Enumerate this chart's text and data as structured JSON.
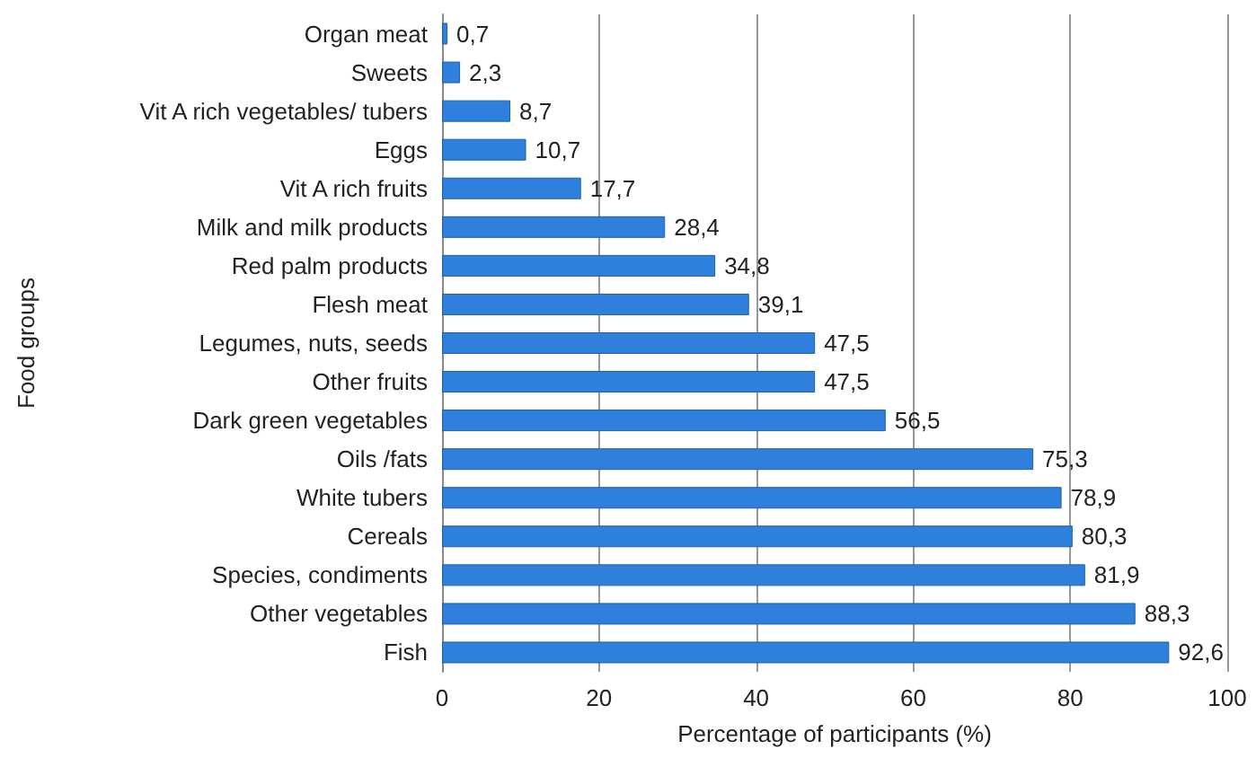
{
  "chart_data": {
    "type": "bar",
    "orientation": "horizontal",
    "categories": [
      "Organ meat",
      "Sweets",
      "Vit A rich vegetables/ tubers",
      "Eggs",
      "Vit A rich fruits",
      "Milk and milk products",
      "Red palm products",
      "Flesh meat",
      "Legumes, nuts, seeds",
      "Other fruits",
      "Dark green vegetables",
      "Oils /fats",
      "White tubers",
      "Cereals",
      "Species, condiments",
      "Other vegetables",
      "Fish"
    ],
    "values": [
      0.7,
      2.3,
      8.7,
      10.7,
      17.7,
      28.4,
      34.8,
      39.1,
      47.5,
      47.5,
      56.5,
      75.3,
      78.9,
      80.3,
      81.9,
      88.3,
      92.6
    ],
    "value_labels": [
      "0,7",
      "2,3",
      "8,7",
      "10,7",
      "17,7",
      "28,4",
      "34,8",
      "39,1",
      "47,5",
      "47,5",
      "56,5",
      "75,3",
      "78,9",
      "80,3",
      "81,9",
      "88,3",
      "92,6"
    ],
    "color": "#2f80dc",
    "xlabel": "Percentage of participants (%)",
    "ylabel": "Food groups",
    "xlim": [
      0,
      100
    ],
    "xticks": [
      0,
      20,
      40,
      60,
      80,
      100
    ],
    "grid": "x"
  }
}
